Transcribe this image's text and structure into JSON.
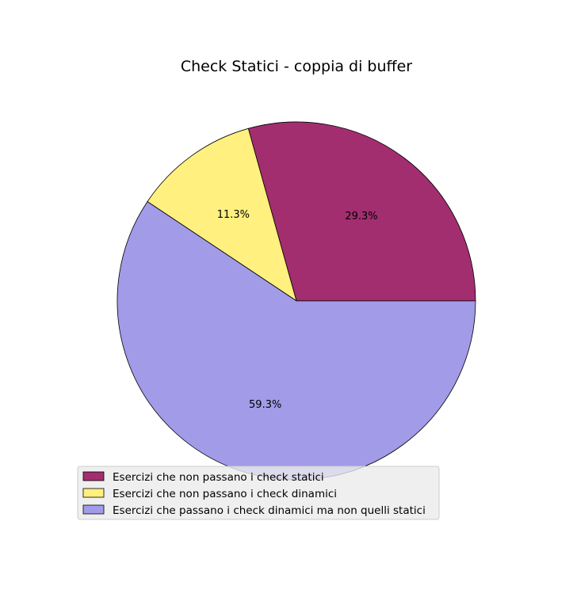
{
  "chart_data": {
    "type": "pie",
    "title": "Check Statici - coppia di buffer",
    "start_angle_deg": 0,
    "direction": "counterclockwise",
    "slices": [
      {
        "label": "Esercizi che non passano i check statici",
        "value": 29.3,
        "pct_label": "29.3%",
        "color": "#a22e6f"
      },
      {
        "label": "Esercizi che non passano i check dinamici",
        "value": 11.3,
        "pct_label": "11.3%",
        "color": "#fff07f"
      },
      {
        "label": "Esercizi che passano i check dinamici ma non quelli statici",
        "value": 59.3,
        "pct_label": "59.3%",
        "color": "#a19be8"
      }
    ],
    "legend": {
      "placement": "lower-left",
      "background": "#ebebeb"
    }
  }
}
